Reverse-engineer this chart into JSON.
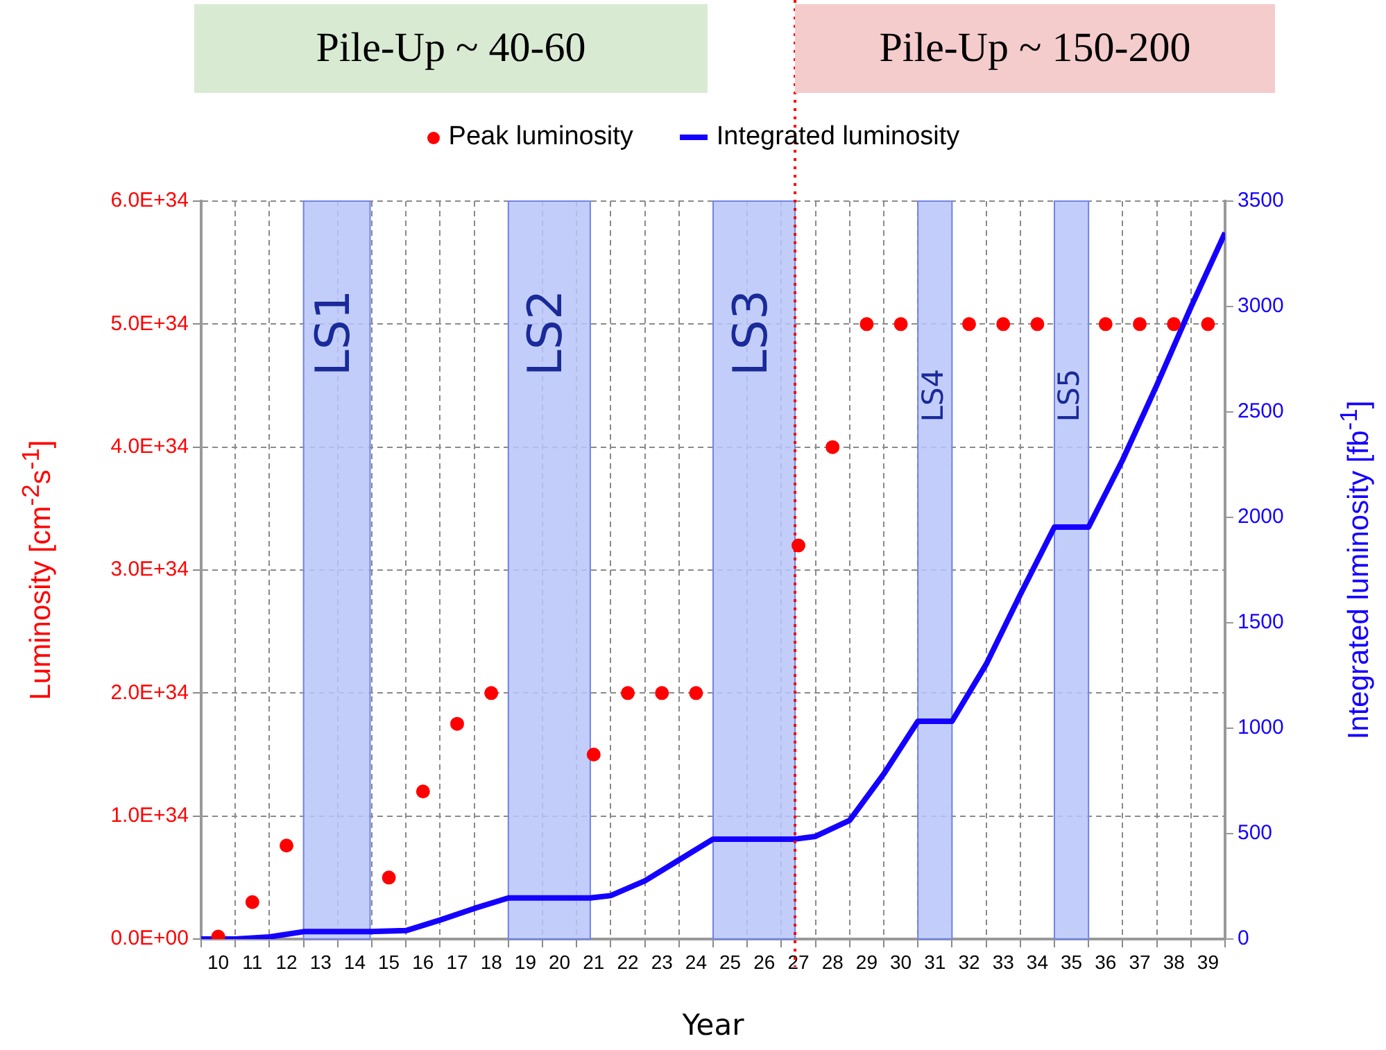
{
  "chart_data": {
    "type": "scatter",
    "annotations": [
      "Pile-Up ~ 40-60",
      "Pile-Up ~ 150-200"
    ],
    "xlabel": "Year",
    "ylabel": "Luminosity [cm$^{-2}$s$^{-1}$]",
    "y2label": "Integrated luminosity [fb$^{-1}$]",
    "x": [
      10,
      11,
      12,
      13,
      14,
      15,
      16,
      17,
      18,
      19,
      20,
      21,
      22,
      23,
      24,
      25,
      26,
      27,
      28,
      29,
      30,
      31,
      32,
      33,
      34,
      35,
      36,
      37,
      38,
      39
    ],
    "series": [
      {
        "name": "Peak luminosity",
        "type": "scatter",
        "marker": "circle",
        "color": "#ff0000",
        "values": [
          2e+32,
          3e+33,
          7.6e+33,
          null,
          null,
          5e+33,
          1.2e+34,
          1.75e+34,
          2e+34,
          null,
          null,
          1.5e+34,
          2e+34,
          2e+34,
          2e+34,
          null,
          null,
          3.2e+34,
          4e+34,
          5e+34,
          5e+34,
          null,
          5e+34,
          5e+34,
          5e+34,
          null,
          5e+34,
          5e+34,
          5e+34,
          5e+34
        ]
      },
      {
        "name": "Integrated luminosity",
        "type": "line",
        "axis": "y2",
        "color": "#1400ff",
        "x": [
          9.5,
          10.5,
          11.5,
          12.5,
          14.45,
          15.5,
          16.5,
          17.5,
          18.5,
          20.9,
          21.5,
          22.5,
          23.5,
          24.5,
          26.9,
          27.5,
          28.5,
          29.5,
          30.5,
          31.5,
          32.5,
          33.5,
          34.5,
          35.5,
          36.5,
          37.5,
          38.5,
          39.5
        ],
        "values": [
          0,
          0,
          10,
          35,
          35,
          40,
          90,
          145,
          195,
          195,
          206,
          276,
          375,
          474,
          474,
          487,
          563,
          783,
          1033,
          1033,
          1303,
          1634,
          1954,
          1954,
          2273,
          2627,
          2997,
          3350
        ]
      }
    ],
    "xlim": [
      9.5,
      39.5
    ],
    "xticks": [
      {
        "value": 9.5,
        "label": null
      },
      10,
      {
        "value": 10.5,
        "label": null
      },
      11,
      {
        "value": 11.5,
        "label": null
      },
      12,
      {
        "value": 12.5,
        "label": null
      },
      13,
      {
        "value": 13.5,
        "label": null
      },
      14,
      {
        "value": 14.5,
        "label": null
      },
      15,
      {
        "value": 15.5,
        "label": null
      },
      16,
      {
        "value": 16.5,
        "label": null
      },
      17,
      {
        "value": 17.5,
        "label": null
      },
      18,
      {
        "value": 18.5,
        "label": null
      },
      19,
      {
        "value": 19.5,
        "label": null
      },
      20,
      {
        "value": 20.5,
        "label": null
      },
      21,
      {
        "value": 21.5,
        "label": null
      },
      22,
      {
        "value": 22.5,
        "label": null
      },
      23,
      {
        "value": 23.5,
        "label": null
      },
      24,
      {
        "value": 24.5,
        "label": null
      },
      25,
      {
        "value": 25.5,
        "label": null
      },
      26,
      {
        "value": 26.5,
        "label": null
      },
      27,
      {
        "value": 27.5,
        "label": null
      },
      28,
      {
        "value": 28.5,
        "label": null
      },
      29,
      {
        "value": 29.5,
        "label": null
      },
      30,
      {
        "value": 30.5,
        "label": null
      },
      31,
      {
        "value": 31.5,
        "label": null
      },
      32,
      {
        "value": 32.5,
        "label": null
      },
      33,
      {
        "value": 33.5,
        "label": null
      },
      34,
      {
        "value": 34.5,
        "label": null
      },
      35,
      {
        "value": 35.5,
        "label": null
      },
      36,
      {
        "value": 36.5,
        "label": null
      },
      37,
      {
        "value": 37.5,
        "label": null
      },
      38,
      {
        "value": 38.5,
        "label": null
      },
      39,
      {
        "value": 39.5,
        "label": null
      }
    ],
    "ylim": [
      0,
      6e+34
    ],
    "yticks": [
      {
        "value": 0,
        "label": "0.0E+00"
      },
      {
        "value": 1e+34,
        "label": "1.0E+34"
      },
      {
        "value": 2e+34,
        "label": "2.0E+34"
      },
      {
        "value": 3e+34,
        "label": "3.0E+34"
      },
      {
        "value": 4e+34,
        "label": "4.0E+34"
      },
      {
        "value": 5e+34,
        "label": "5.0E+34"
      },
      {
        "value": 6e+34,
        "label": "6.0E+34"
      }
    ],
    "y2lim": [
      0,
      3500
    ],
    "y2ticks": [
      0,
      500,
      1000,
      1500,
      2000,
      2500,
      3000,
      3500
    ],
    "bands": [
      {
        "axis": "x",
        "from": 12.5,
        "to": 14.45,
        "label": "LS1",
        "color": "#b7c5f8"
      },
      {
        "axis": "x",
        "from": 18.5,
        "to": 20.9,
        "label": "LS2",
        "color": "#b7c5f8"
      },
      {
        "axis": "x",
        "from": 24.5,
        "to": 26.9,
        "label": "LS3",
        "color": "#b7c5f8"
      },
      {
        "axis": "x",
        "from": 30.5,
        "to": 31.5,
        "label": "LS4",
        "color": "#b7c5f8"
      },
      {
        "axis": "x",
        "from": 34.5,
        "to": 35.5,
        "label": "LS5",
        "color": "#b7c5f8"
      }
    ],
    "ref_lines": [
      {
        "axis": "x",
        "value": 26.9,
        "color": "#ff0000",
        "line_style": "dotted"
      }
    ],
    "grid": true,
    "legend": "top"
  }
}
